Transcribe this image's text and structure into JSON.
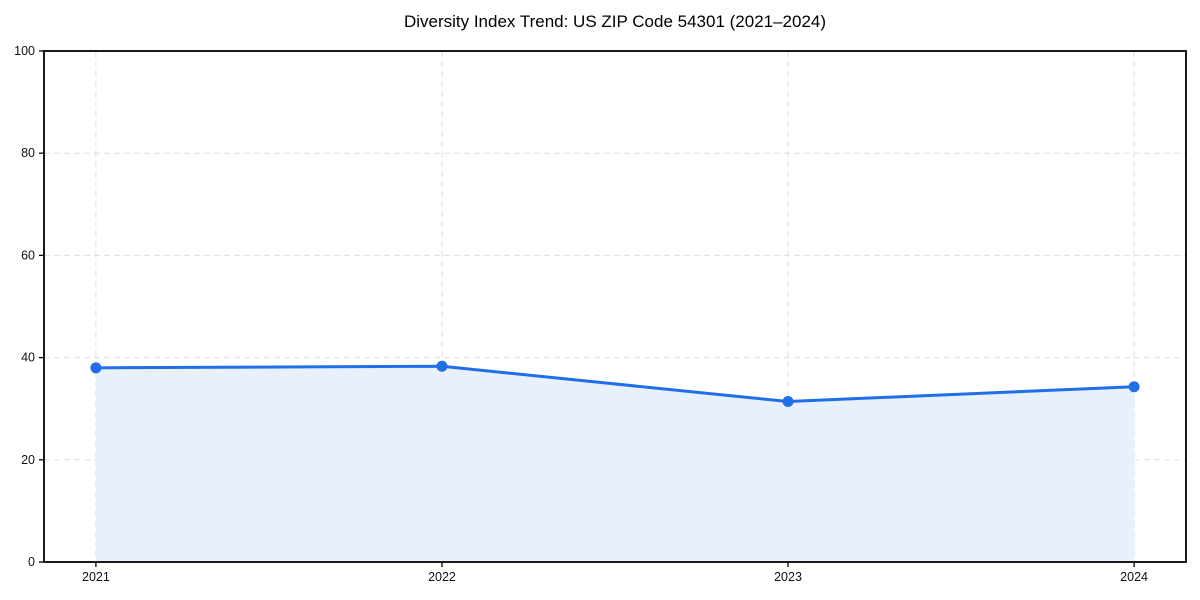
{
  "chart_data": {
    "type": "area",
    "title": "Diversity Index Trend: US ZIP Code 54301 (2021–2024)",
    "x": [
      2021,
      2022,
      2023,
      2024
    ],
    "values": [
      38.0,
      38.3,
      31.4,
      34.3
    ],
    "xlabel": "",
    "ylabel": "",
    "ylim": [
      0,
      100
    ],
    "yticks": [
      0,
      20,
      40,
      60,
      80,
      100
    ],
    "grid": true,
    "grid_style": "dashed",
    "legend": false,
    "marker": "circle",
    "colors": {
      "line": "#1f6fe8",
      "marker": "#1f6fe8",
      "fill": "#e8f0fc",
      "grid": "#dedede",
      "spine": "#000000",
      "tick_label": "#111111",
      "title": "#000000",
      "background": "#ffffff"
    }
  }
}
